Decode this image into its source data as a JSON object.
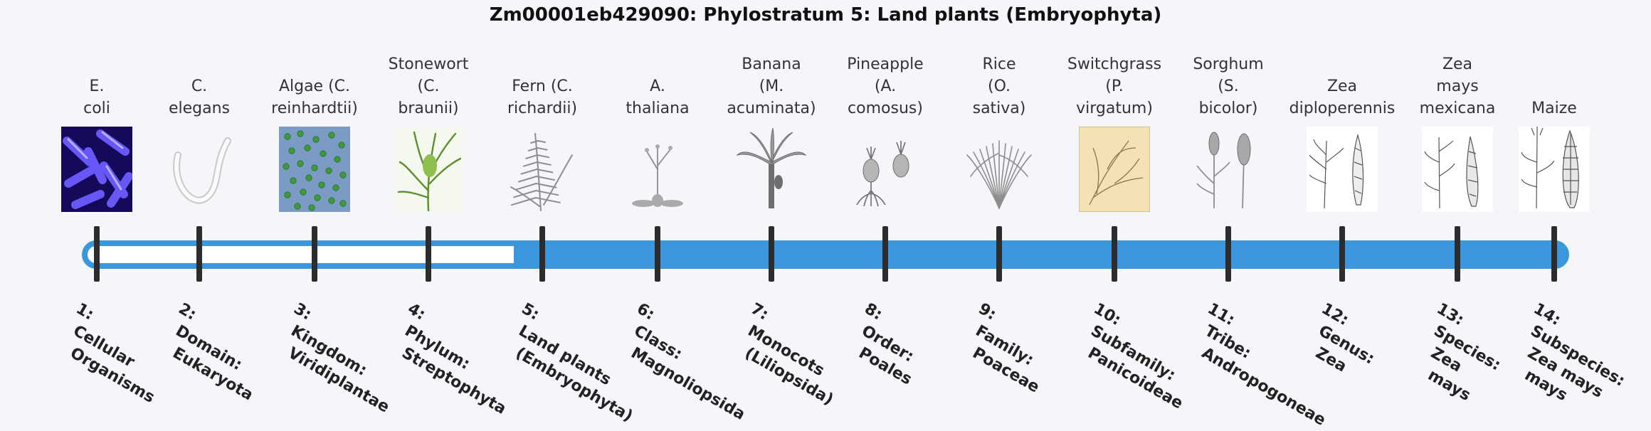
{
  "title": "Zm00001eb429090: Phylostratum 5: Land plants (Embryophyta)",
  "current_stratum": 5,
  "colors": {
    "track_fill": "#3a97dc",
    "track_empty": "#ffffff",
    "tick": "#2c2c2c",
    "background": "#f4f6f9"
  },
  "strata": [
    {
      "rank": "1:",
      "level": "Cellular",
      "level2": "Organisms",
      "species": [
        "E.",
        "coli"
      ],
      "icon": "ecoli-micrograph-icon"
    },
    {
      "rank": "2:",
      "level": "Domain:",
      "level2": "Eukaryota",
      "species": [
        "C.",
        "elegans"
      ],
      "icon": "nematode-icon"
    },
    {
      "rank": "3:",
      "level": "Kingdom:",
      "level2": "Viridiplantae",
      "species": [
        "Algae (C.",
        "reinhardtii)"
      ],
      "icon": "algae-cells-icon"
    },
    {
      "rank": "4:",
      "level": "Phylum:",
      "level2": "Streptophyta",
      "species": [
        "Stonewort",
        "(C.",
        "braunii)"
      ],
      "icon": "stonewort-icon"
    },
    {
      "rank": "5:",
      "level": "Land plants",
      "level2": "(Embryophyta)",
      "species": [
        "Fern (C.",
        "richardii)"
      ],
      "icon": "fern-icon"
    },
    {
      "rank": "6:",
      "level": "Class:",
      "level2": "Magnoliopsida",
      "species": [
        "A.",
        "thaliana"
      ],
      "icon": "arabidopsis-icon"
    },
    {
      "rank": "7:",
      "level": "Monocots",
      "level2": "(Liliopsida)",
      "species": [
        "Banana",
        "(M.",
        "acuminata)"
      ],
      "icon": "banana-plant-icon"
    },
    {
      "rank": "8:",
      "level": "Order:",
      "level2": "Poales",
      "species": [
        "Pineapple",
        "(A.",
        "comosus)"
      ],
      "icon": "pineapple-icon"
    },
    {
      "rank": "9:",
      "level": "Family:",
      "level2": "Poaceae",
      "species": [
        "Rice",
        "(O.",
        "sativa)"
      ],
      "icon": "rice-plant-icon"
    },
    {
      "rank": "10:",
      "level": "Subfamily:",
      "level2": "Panicoideae",
      "species": [
        "Switchgrass",
        "(P.",
        "virgatum)"
      ],
      "icon": "switchgrass-illustration-icon"
    },
    {
      "rank": "11:",
      "level": "Tribe:",
      "level2": "Andropogoneae",
      "species": [
        "Sorghum",
        "(S.",
        "bicolor)"
      ],
      "icon": "sorghum-icon"
    },
    {
      "rank": "12:",
      "level": "Genus:",
      "level2": "Zea",
      "species": [
        "Zea",
        "diploperennis"
      ],
      "icon": "zea-diploperennis-icon"
    },
    {
      "rank": "13:",
      "level": "Species:",
      "level2": "Zea",
      "level3": "mays",
      "species": [
        "Zea",
        "mays",
        "mexicana"
      ],
      "icon": "zea-mexicana-icon"
    },
    {
      "rank": "14:",
      "level": "Subspecies:",
      "level2": "Zea mays",
      "level3": "mays",
      "species": [
        "Maize"
      ],
      "icon": "maize-icon"
    }
  ]
}
